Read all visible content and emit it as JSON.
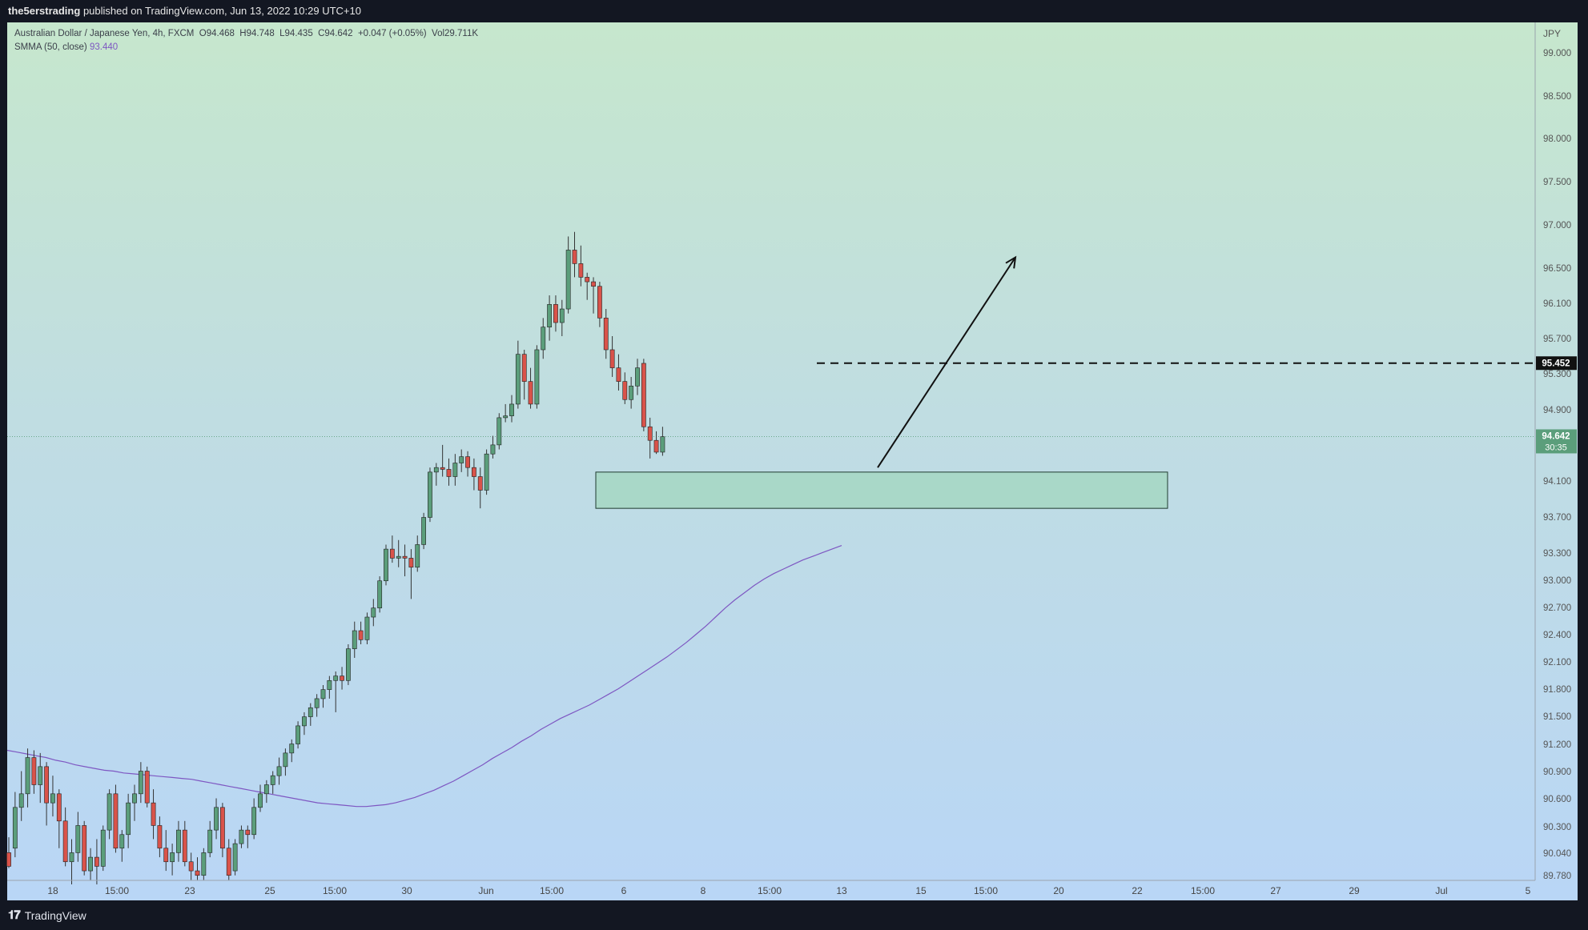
{
  "header": {
    "author": "the5erstrading",
    "published_text": "published on TradingView.com, Jun 13, 2022 10:29 UTC+10"
  },
  "legend": {
    "symbol_line": "Australian Dollar / Japanese Yen, 4h, FXCM  O94.468  H94.748  L94.435  C94.642  +0.047 (+0.05%)  Vol29.711K",
    "smma_label": "SMMA (50, close)",
    "smma_value": "93.440"
  },
  "footer": {
    "logo_text": "TradingView"
  },
  "colors": {
    "up": "#5b9e7b",
    "down": "#d9534a",
    "smma": "#7e57c2",
    "zone_fill": "#a9d8c8",
    "level_line": "#111111"
  },
  "chart_data": {
    "type": "candlestick",
    "symbol": "Australian Dollar / Japanese Yen",
    "interval": "4h",
    "exchange": "FXCM",
    "currency": "JPY",
    "ohlc": {
      "open": 94.468,
      "high": 94.748,
      "low": 94.435,
      "close": 94.642,
      "change": "+0.047 (+0.05%)",
      "volume": "29.711K"
    },
    "price_scale": {
      "unit_label": "JPY",
      "ticks": [
        "99.000",
        "98.500",
        "98.000",
        "97.500",
        "97.000",
        "96.500",
        "96.100",
        "95.700",
        "95.300",
        "94.900",
        "94.100",
        "93.700",
        "93.300",
        "93.000",
        "92.700",
        "92.400",
        "92.100",
        "91.800",
        "91.500",
        "91.200",
        "90.900",
        "90.600",
        "90.300",
        "90.040",
        "89.780"
      ],
      "ylim": [
        89.7,
        99.3
      ]
    },
    "time_scale": {
      "ticks": [
        "18",
        "15:00",
        "23",
        "25",
        "15:00",
        "30",
        "Jun",
        "15:00",
        "6",
        "8",
        "15:00",
        "13",
        "15",
        "15:00",
        "20",
        "22",
        "15:00",
        "27",
        "29",
        "Jul",
        "5"
      ]
    },
    "current_price": {
      "value": "94.642",
      "countdown": "30:35"
    },
    "resistance_level": {
      "value": "95.452"
    },
    "demand_zone": {
      "from": 93.85,
      "to": 94.25
    },
    "arrow": {
      "from": 94.3,
      "to": 96.62
    },
    "candles": [
      [
        90.05,
        90.22,
        89.88,
        89.9
      ],
      [
        90.1,
        90.72,
        90.0,
        90.55
      ],
      [
        90.55,
        90.95,
        90.4,
        90.7
      ],
      [
        90.7,
        91.2,
        90.55,
        91.1
      ],
      [
        91.1,
        91.18,
        90.7,
        90.8
      ],
      [
        90.8,
        91.15,
        90.6,
        91.0
      ],
      [
        91.0,
        91.05,
        90.35,
        90.6
      ],
      [
        90.6,
        90.9,
        90.45,
        90.7
      ],
      [
        90.7,
        90.75,
        90.1,
        90.4
      ],
      [
        90.4,
        90.55,
        89.9,
        89.95
      ],
      [
        89.95,
        90.2,
        89.7,
        90.05
      ],
      [
        90.05,
        90.5,
        89.95,
        90.35
      ],
      [
        90.35,
        90.4,
        89.8,
        89.85
      ],
      [
        89.85,
        90.1,
        89.75,
        90.0
      ],
      [
        90.0,
        90.2,
        89.7,
        89.9
      ],
      [
        89.9,
        90.35,
        89.85,
        90.3
      ],
      [
        90.3,
        90.75,
        90.2,
        90.7
      ],
      [
        90.7,
        90.8,
        90.05,
        90.1
      ],
      [
        90.1,
        90.3,
        89.95,
        90.25
      ],
      [
        90.25,
        90.7,
        90.1,
        90.6
      ],
      [
        90.6,
        90.8,
        90.4,
        90.7
      ],
      [
        90.7,
        91.05,
        90.6,
        90.95
      ],
      [
        90.95,
        91.0,
        90.55,
        90.6
      ],
      [
        90.6,
        90.75,
        90.2,
        90.35
      ],
      [
        90.35,
        90.45,
        90.0,
        90.1
      ],
      [
        90.1,
        90.3,
        89.85,
        89.95
      ],
      [
        89.95,
        90.15,
        89.8,
        90.05
      ],
      [
        90.05,
        90.4,
        89.95,
        90.3
      ],
      [
        90.3,
        90.4,
        89.9,
        89.95
      ],
      [
        89.95,
        90.05,
        89.75,
        89.85
      ],
      [
        89.85,
        90.0,
        89.75,
        89.8
      ],
      [
        89.8,
        90.1,
        89.75,
        90.05
      ],
      [
        90.05,
        90.4,
        90.0,
        90.3
      ],
      [
        90.3,
        90.65,
        90.2,
        90.55
      ],
      [
        90.55,
        90.6,
        90.0,
        90.1
      ],
      [
        90.1,
        90.2,
        89.75,
        89.8
      ],
      [
        89.85,
        90.2,
        89.8,
        90.15
      ],
      [
        90.15,
        90.35,
        90.1,
        90.3
      ],
      [
        90.3,
        90.35,
        90.1,
        90.25
      ],
      [
        90.25,
        90.65,
        90.2,
        90.55
      ],
      [
        90.55,
        90.8,
        90.5,
        90.7
      ],
      [
        90.7,
        90.85,
        90.6,
        90.8
      ],
      [
        90.8,
        90.95,
        90.7,
        90.9
      ],
      [
        90.9,
        91.1,
        90.8,
        91.0
      ],
      [
        91.0,
        91.2,
        90.9,
        91.15
      ],
      [
        91.15,
        91.3,
        91.05,
        91.25
      ],
      [
        91.25,
        91.5,
        91.2,
        91.45
      ],
      [
        91.45,
        91.6,
        91.35,
        91.55
      ],
      [
        91.55,
        91.7,
        91.45,
        91.65
      ],
      [
        91.65,
        91.8,
        91.55,
        91.75
      ],
      [
        91.75,
        91.9,
        91.65,
        91.85
      ],
      [
        91.85,
        92.0,
        91.75,
        91.95
      ],
      [
        91.95,
        92.05,
        91.6,
        92.0
      ],
      [
        92.0,
        92.1,
        91.85,
        91.95
      ],
      [
        91.95,
        92.35,
        91.9,
        92.3
      ],
      [
        92.3,
        92.6,
        92.2,
        92.5
      ],
      [
        92.5,
        92.6,
        92.35,
        92.4
      ],
      [
        92.4,
        92.7,
        92.35,
        92.65
      ],
      [
        92.65,
        92.85,
        92.55,
        92.75
      ],
      [
        92.75,
        93.1,
        92.7,
        93.05
      ],
      [
        93.05,
        93.45,
        93.0,
        93.4
      ],
      [
        93.4,
        93.55,
        93.25,
        93.3
      ],
      [
        93.3,
        93.5,
        93.2,
        93.32
      ],
      [
        93.32,
        93.45,
        93.1,
        93.3
      ],
      [
        93.3,
        93.4,
        92.85,
        93.2
      ],
      [
        93.2,
        93.55,
        93.15,
        93.45
      ],
      [
        93.45,
        93.8,
        93.4,
        93.75
      ],
      [
        93.75,
        94.3,
        93.7,
        94.25
      ],
      [
        94.25,
        94.35,
        94.1,
        94.3
      ],
      [
        94.3,
        94.55,
        94.2,
        94.28
      ],
      [
        94.28,
        94.4,
        94.1,
        94.2
      ],
      [
        94.2,
        94.45,
        94.1,
        94.35
      ],
      [
        94.35,
        94.5,
        94.25,
        94.42
      ],
      [
        94.42,
        94.48,
        94.2,
        94.3
      ],
      [
        94.3,
        94.4,
        94.05,
        94.2
      ],
      [
        94.2,
        94.3,
        93.85,
        94.05
      ],
      [
        94.05,
        94.5,
        94.0,
        94.45
      ],
      [
        94.45,
        94.65,
        94.4,
        94.55
      ],
      [
        94.55,
        94.9,
        94.5,
        94.85
      ],
      [
        94.85,
        95.0,
        94.8,
        94.87
      ],
      [
        94.87,
        95.1,
        94.8,
        95.0
      ],
      [
        95.0,
        95.7,
        94.95,
        95.55
      ],
      [
        95.55,
        95.6,
        95.05,
        95.25
      ],
      [
        95.25,
        95.4,
        94.95,
        95.0
      ],
      [
        95.0,
        95.65,
        94.95,
        95.6
      ],
      [
        95.6,
        95.95,
        95.5,
        95.85
      ],
      [
        95.85,
        96.2,
        95.7,
        96.1
      ],
      [
        96.1,
        96.2,
        95.8,
        95.9
      ],
      [
        95.9,
        96.15,
        95.75,
        96.05
      ],
      [
        96.05,
        96.85,
        96.0,
        96.7
      ],
      [
        96.7,
        96.9,
        96.4,
        96.55
      ],
      [
        96.55,
        96.75,
        96.3,
        96.4
      ],
      [
        96.4,
        96.45,
        96.15,
        96.35
      ],
      [
        96.35,
        96.4,
        96.0,
        96.3
      ],
      [
        96.3,
        96.35,
        95.85,
        95.95
      ],
      [
        95.95,
        96.05,
        95.5,
        95.6
      ],
      [
        95.6,
        95.75,
        95.3,
        95.4
      ],
      [
        95.4,
        95.55,
        95.15,
        95.25
      ],
      [
        95.25,
        95.35,
        95.0,
        95.05
      ],
      [
        95.05,
        95.3,
        94.95,
        95.2
      ],
      [
        95.2,
        95.5,
        95.1,
        95.4
      ],
      [
        95.45,
        95.5,
        94.7,
        94.75
      ],
      [
        94.75,
        94.85,
        94.4,
        94.6
      ],
      [
        94.6,
        94.7,
        94.45,
        94.47
      ],
      [
        94.47,
        94.75,
        94.43,
        94.64
      ]
    ],
    "smma": [
      91.18,
      91.16,
      91.14,
      91.12,
      91.1,
      91.07,
      91.05,
      91.02,
      91.0,
      90.98,
      90.96,
      90.95,
      90.93,
      90.92,
      90.91,
      90.9,
      90.89,
      90.88,
      90.87,
      90.86,
      90.84,
      90.82,
      90.8,
      90.78,
      90.76,
      90.74,
      90.72,
      90.7,
      90.68,
      90.66,
      90.64,
      90.62,
      90.6,
      90.59,
      90.58,
      90.57,
      90.56,
      90.56,
      90.57,
      90.58,
      90.6,
      90.63,
      90.66,
      90.7,
      90.74,
      90.79,
      90.84,
      90.9,
      90.96,
      91.02,
      91.09,
      91.15,
      91.21,
      91.28,
      91.34,
      91.41,
      91.47,
      91.53,
      91.58,
      91.63,
      91.68,
      91.74,
      91.8,
      91.86,
      91.93,
      92.0,
      92.07,
      92.14,
      92.21,
      92.29,
      92.37,
      92.46,
      92.55,
      92.65,
      92.75,
      92.84,
      92.92,
      93.0,
      93.07,
      93.13,
      93.18,
      93.23,
      93.28,
      93.32,
      93.36,
      93.4,
      93.44
    ]
  }
}
